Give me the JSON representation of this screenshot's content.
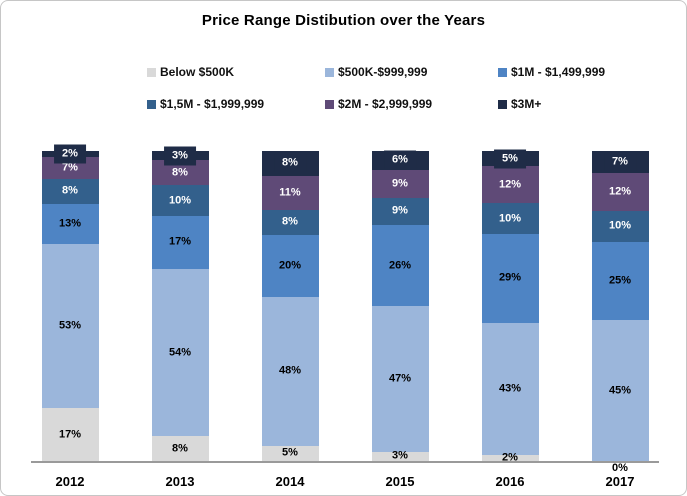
{
  "title": "Price Range Distibution over the Years",
  "chart_data": {
    "type": "bar",
    "stacked": true,
    "orientation": "vertical",
    "title": "Price Range Distibution over the Years",
    "categories": [
      "2012",
      "2013",
      "2014",
      "2015",
      "2016",
      "2017"
    ],
    "series": [
      {
        "name": "Below $500K",
        "color": "#d9d9d9",
        "label_color": "#000000",
        "values": [
          17,
          8,
          5,
          3,
          2,
          0
        ]
      },
      {
        "name": "$500K-$999,999",
        "color": "#9bb6db",
        "label_color": "#000000",
        "values": [
          53,
          54,
          48,
          47,
          43,
          45
        ]
      },
      {
        "name": "$1M - $1,499,999",
        "color": "#4e84c4",
        "label_color": "#000000",
        "values": [
          13,
          17,
          20,
          26,
          29,
          25
        ]
      },
      {
        "name": "$1,5M - $1,999,999",
        "color": "#33608c",
        "label_color": "#ffffff",
        "values": [
          8,
          10,
          8,
          9,
          10,
          10
        ]
      },
      {
        "name": "$2M - $2,999,999",
        "color": "#5f4a77",
        "label_color": "#ffffff",
        "values": [
          7,
          8,
          11,
          9,
          12,
          12
        ]
      },
      {
        "name": "$3M+",
        "color": "#1f2c47",
        "label_color": "#ffffff",
        "values": [
          2,
          3,
          8,
          6,
          5,
          7
        ]
      }
    ],
    "value_suffix": "%",
    "ylim": [
      0,
      100
    ],
    "grid": false,
    "legend_position": "top",
    "data_labels": "center",
    "top_series_label_style": "boxed-callout",
    "axis_line_color": "#9a9a9a",
    "frame_border_color": "#c6c6c6",
    "background_color": "#ffffff"
  }
}
